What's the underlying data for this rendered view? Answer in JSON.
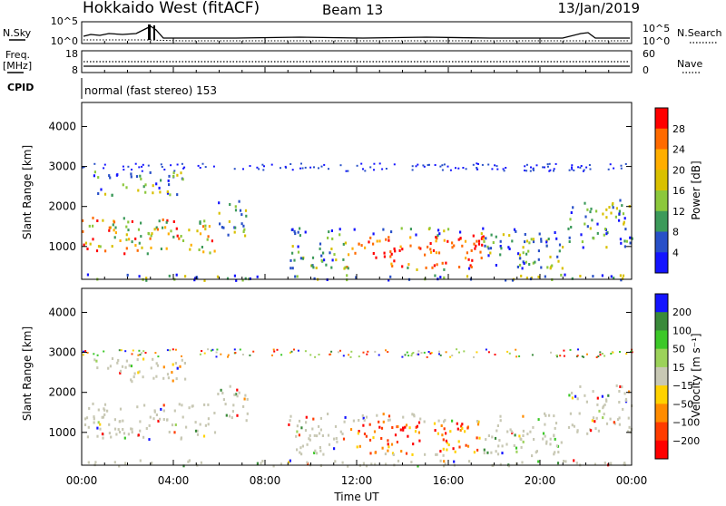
{
  "header": {
    "title": "Hokkaido West (fitACF)",
    "beam": "Beam 13",
    "date": "13/Jan/2019"
  },
  "noise_panel": {
    "left_label": "N.Sky",
    "right_label": "N.Search",
    "left_ticks": [
      "10^5",
      "10^0"
    ],
    "right_ticks": [
      "10^5",
      "10^0"
    ]
  },
  "freq_panel": {
    "left_label_1": "Freq.",
    "left_label_2": "[MHz]",
    "right_label": "Nave",
    "left_ticks": [
      "18",
      "8"
    ],
    "right_ticks": [
      "60",
      "0"
    ]
  },
  "cpid": {
    "label": "CPID",
    "program": "normal (fast stereo) 153"
  },
  "chart_data": [
    {
      "type": "heatmap",
      "quantity": "power",
      "ylabel": "Slant Range [km]",
      "ylim": [
        180,
        4600
      ],
      "yticks": [
        "1000",
        "2000",
        "3000",
        "4000"
      ],
      "xlim": [
        "00:00",
        "24:00"
      ],
      "colorbar": {
        "label": "Power [dB]",
        "ticks": [
          "28",
          "24",
          "20",
          "16",
          "12",
          "8",
          "4"
        ],
        "colors": [
          "#ff0000",
          "#ff6a00",
          "#ffae00",
          "#d9c000",
          "#8cc83c",
          "#3c9a5a",
          "#2850c8",
          "#1414ff"
        ]
      }
    },
    {
      "type": "heatmap",
      "quantity": "velocity",
      "ylabel": "Slant Range [km]",
      "ylim": [
        180,
        4600
      ],
      "yticks": [
        "1000",
        "2000",
        "3000",
        "4000"
      ],
      "xlim": [
        "00:00",
        "24:00"
      ],
      "colorbar": {
        "label": "Velocity [m s⁻¹]",
        "ticks": [
          "200",
          "100",
          "50",
          "15",
          "−15",
          "−50",
          "−100",
          "−200"
        ],
        "colors": [
          "#1414ff",
          "#3a8a3a",
          "#3cc828",
          "#9cd25a",
          "#c8c8b4",
          "#ffd200",
          "#ff8c00",
          "#ff3c00",
          "#ff0000"
        ]
      }
    }
  ],
  "x_axis": {
    "ticks": [
      "00:00",
      "04:00",
      "08:00",
      "12:00",
      "16:00",
      "20:00",
      "00:00"
    ],
    "label": "Time UT"
  }
}
